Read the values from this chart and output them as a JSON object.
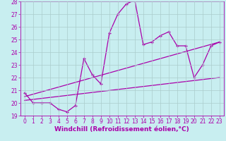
{
  "background_color": "#c8eef0",
  "line_color": "#aa00aa",
  "grid_color": "#aacccc",
  "xlim": [
    -0.5,
    23.5
  ],
  "ylim": [
    19,
    28
  ],
  "yticks": [
    19,
    20,
    21,
    22,
    23,
    24,
    25,
    26,
    27,
    28
  ],
  "xticks": [
    0,
    1,
    2,
    3,
    4,
    5,
    6,
    7,
    8,
    9,
    10,
    11,
    12,
    13,
    14,
    15,
    16,
    17,
    18,
    19,
    20,
    21,
    22,
    23
  ],
  "line1_x": [
    0,
    1,
    2,
    3,
    4,
    5,
    6,
    7,
    8,
    9,
    10,
    11,
    12,
    13,
    14,
    15,
    16,
    17,
    18,
    19,
    20,
    21,
    22,
    23
  ],
  "line1_y": [
    20.8,
    20.0,
    20.0,
    20.0,
    19.5,
    19.3,
    19.8,
    23.5,
    22.2,
    21.5,
    25.5,
    27.0,
    27.8,
    28.1,
    24.6,
    24.8,
    25.3,
    25.6,
    24.5,
    24.5,
    22.0,
    23.0,
    24.5,
    24.8
  ],
  "line2_x": [
    0,
    23
  ],
  "line2_y": [
    20.5,
    24.8
  ],
  "line3_x": [
    0,
    23
  ],
  "line3_y": [
    20.2,
    22.0
  ],
  "xlabel": "Windchill (Refroidissement éolien,°C)",
  "xlabel_fontsize": 6.5,
  "tick_fontsize": 5.5,
  "line_width": 0.9,
  "marker_size": 3
}
